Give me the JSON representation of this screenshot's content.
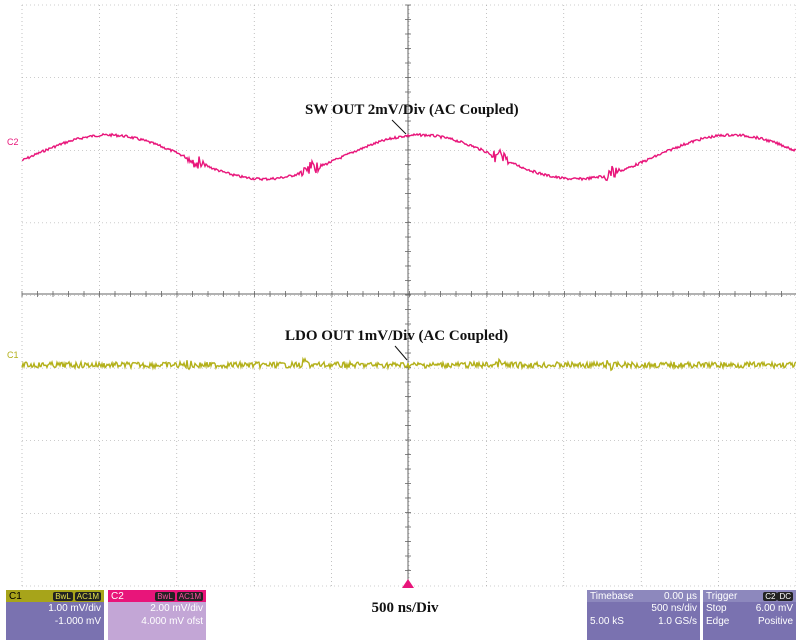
{
  "annotations": {
    "sw_out": "SW OUT 2mV/Div (AC Coupled)",
    "ldo_out": "LDO OUT  1mV/Div (AC Coupled)"
  },
  "channel_markers": {
    "c2": "C2",
    "c1": "C1"
  },
  "colors": {
    "c1": "#b3b01a",
    "c2": "#e8157a",
    "grid": "#9a9a9a",
    "panel": "#7a72b0"
  },
  "bottom": {
    "time_per_div": "500 ns/Div",
    "c1": {
      "name": "C1",
      "tag1": "BwL",
      "tag2": "AC1M",
      "scale": "1.00 mV/div",
      "offset": "-1.000 mV"
    },
    "c2": {
      "name": "C2",
      "tag1": "BwL",
      "tag2": "AC1M",
      "scale": "2.00 mV/div",
      "offset": "4.000 mV ofst"
    },
    "timebase": {
      "label": "Timebase",
      "delay": "0.00 µs",
      "scale": "500 ns/div",
      "samples": "5.00 kS",
      "rate": "1.0 GS/s"
    },
    "trigger": {
      "label": "Trigger",
      "source": "C2",
      "coupling": "DC",
      "mode": "Stop",
      "level": "6.00 mV",
      "type": "Edge",
      "slope": "Positive"
    }
  }
}
